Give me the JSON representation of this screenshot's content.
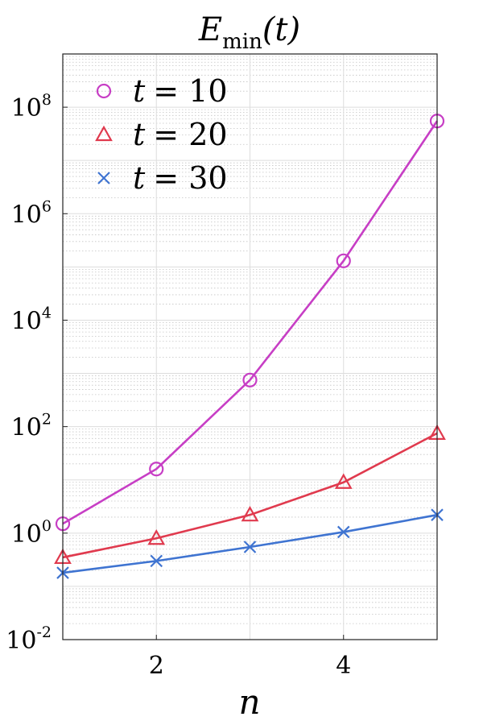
{
  "chart_data": {
    "type": "line",
    "title": {
      "base": "E",
      "sub": "min",
      "arg": "(t)"
    },
    "xlabel": "n",
    "ylabel": "",
    "xlim": [
      1,
      5
    ],
    "ylim": [
      0.01,
      1000000000
    ],
    "yscale": "log",
    "grid": true,
    "minor_grid": true,
    "legend_position": "top-left",
    "x_ticks": [
      2,
      4
    ],
    "y_ticks": [
      {
        "value": 0.01,
        "base": "10",
        "exp": "-2"
      },
      {
        "value": 1,
        "base": "10",
        "exp": "0"
      },
      {
        "value": 100,
        "base": "10",
        "exp": "2"
      },
      {
        "value": 10000,
        "base": "10",
        "exp": "4"
      },
      {
        "value": 1000000,
        "base": "10",
        "exp": "6"
      },
      {
        "value": 100000000,
        "base": "10",
        "exp": "8"
      }
    ],
    "x": [
      1,
      2,
      3,
      4,
      5
    ],
    "series": [
      {
        "name": "t = 10",
        "var": "t",
        "eq": "= 10",
        "marker": "circle",
        "color": "#c73ec5",
        "values": [
          1.5,
          16,
          750,
          130000,
          55000000
        ]
      },
      {
        "name": "t = 20",
        "var": "t",
        "eq": "= 20",
        "marker": "triangle",
        "color": "#e03a4e",
        "values": [
          0.35,
          0.8,
          2.2,
          9,
          75
        ]
      },
      {
        "name": "t = 30",
        "var": "t",
        "eq": "= 30",
        "marker": "cross",
        "color": "#3f74d1",
        "values": [
          0.18,
          0.3,
          0.55,
          1.05,
          2.2
        ]
      }
    ]
  }
}
